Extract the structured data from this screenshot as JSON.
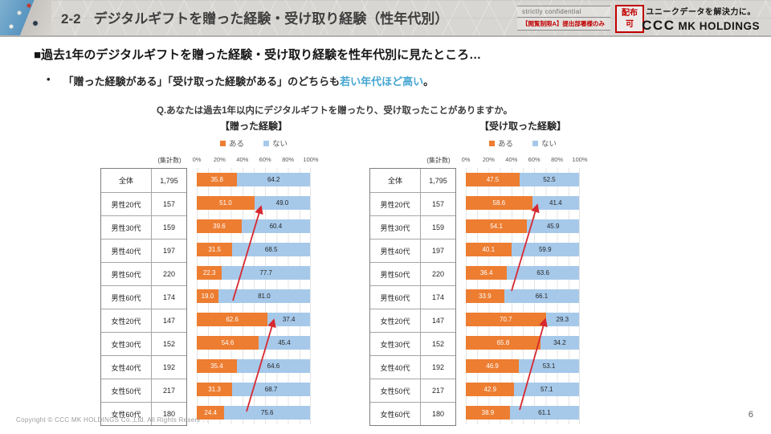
{
  "header": {
    "prefix": "2-2",
    "title": "デジタルギフトを贈った経験・受け取り経験（性年代別）",
    "confidential_line1": "strictly confidential",
    "confidential_line2": "【閲覧制限A】提出部署様のみ",
    "stamp": "配布可",
    "logo_tagline": "ユニークデータを解決力に。",
    "logo_ccc": "CCC",
    "logo_rest": "MK HOLDINGS"
  },
  "body": {
    "headline": "■過去1年のデジタルギフトを贈った経験・受け取り経験を性年代別に見たところ…",
    "bullet_marker": "•",
    "bullet_pre": "「贈った経験がある」「受け取った経験がある」のどちらも",
    "bullet_highlight": "若い年代ほど高い",
    "bullet_post": "。",
    "question": "Q.あなたは過去1年以内にデジタルギフトを贈ったり、受け取ったことがありますか。"
  },
  "chart_data": [
    {
      "type": "bar",
      "orientation": "horizontal",
      "stacked": true,
      "title": "【贈った経験】",
      "count_header": "(集計数)",
      "legend": [
        {
          "label": "ある",
          "color": "#ED7D31"
        },
        {
          "label": "ない",
          "color": "#A6C9EA"
        }
      ],
      "x_ticks": [
        "0%",
        "20%",
        "40%",
        "60%",
        "80%",
        "100%"
      ],
      "xlim": [
        0,
        100
      ],
      "grid": true,
      "categories": [
        "全体",
        "男性20代",
        "男性30代",
        "男性40代",
        "男性50代",
        "男性60代",
        "女性20代",
        "女性30代",
        "女性40代",
        "女性50代",
        "女性60代"
      ],
      "counts": [
        "1,795",
        "157",
        "159",
        "197",
        "220",
        "174",
        "147",
        "152",
        "192",
        "217",
        "180"
      ],
      "series": [
        {
          "name": "ある",
          "values": [
            35.8,
            51.0,
            39.6,
            31.5,
            22.3,
            19.0,
            62.6,
            54.6,
            35.4,
            31.3,
            24.4
          ]
        },
        {
          "name": "ない",
          "values": [
            64.2,
            49.0,
            60.4,
            68.5,
            77.7,
            81.0,
            37.4,
            45.4,
            64.6,
            68.7,
            75.6
          ]
        }
      ],
      "annotations": [
        {
          "type": "arrow",
          "from": "男性60代",
          "to": "男性20代",
          "meaning": "若い年代ほど高い"
        },
        {
          "type": "arrow",
          "from": "女性60代",
          "to": "女性20代",
          "meaning": "若い年代ほど高い"
        }
      ]
    },
    {
      "type": "bar",
      "orientation": "horizontal",
      "stacked": true,
      "title": "【受け取った経験】",
      "count_header": "(集計数)",
      "legend": [
        {
          "label": "ある",
          "color": "#ED7D31"
        },
        {
          "label": "ない",
          "color": "#A6C9EA"
        }
      ],
      "x_ticks": [
        "0%",
        "20%",
        "40%",
        "60%",
        "80%",
        "100%"
      ],
      "xlim": [
        0,
        100
      ],
      "grid": true,
      "categories": [
        "全体",
        "男性20代",
        "男性30代",
        "男性40代",
        "男性50代",
        "男性60代",
        "女性20代",
        "女性30代",
        "女性40代",
        "女性50代",
        "女性60代"
      ],
      "counts": [
        "1,795",
        "157",
        "159",
        "197",
        "220",
        "174",
        "147",
        "152",
        "192",
        "217",
        "180"
      ],
      "series": [
        {
          "name": "ある",
          "values": [
            47.5,
            58.6,
            54.1,
            40.1,
            36.4,
            33.9,
            70.7,
            65.8,
            46.9,
            42.9,
            38.9
          ]
        },
        {
          "name": "ない",
          "values": [
            52.5,
            41.4,
            45.9,
            59.9,
            63.6,
            66.1,
            29.3,
            34.2,
            53.1,
            57.1,
            61.1
          ]
        }
      ],
      "annotations": [
        {
          "type": "arrow",
          "from": "男性60代",
          "to": "男性20代",
          "meaning": "若い年代ほど高い"
        },
        {
          "type": "arrow",
          "from": "女性60代",
          "to": "女性20代",
          "meaning": "若い年代ほど高い"
        }
      ]
    }
  ],
  "footer": {
    "copyright": "Copyright © CCC MK HOLDINGS Co.,Ltd. All Rights Reserv . .",
    "page_number": "6"
  },
  "colors": {
    "bar_yes": "#ED7D31",
    "bar_no": "#A6C9EA",
    "highlight_text": "#45a5d2",
    "arrow": "#d7282f",
    "stamp_red": "#c00000"
  }
}
